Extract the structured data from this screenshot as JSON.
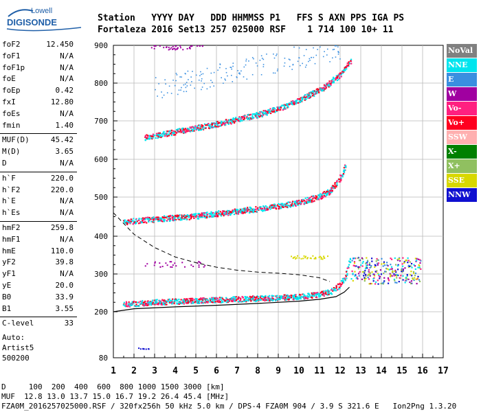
{
  "logo": {
    "line1": "Lowell",
    "line2": "DIGISONDE"
  },
  "header": {
    "labels": "Station   YYYY DAY   DDD HHMMSS P1   FFS S AXN PPS IGA PS",
    "values": "Fortaleza 2016 Set13 257 025000 RSF    1 714 100 10+ 11"
  },
  "params": [
    {
      "name": "foF2",
      "value": "12.450"
    },
    {
      "name": "foF1",
      "value": "N/A"
    },
    {
      "name": "foF1p",
      "value": "N/A"
    },
    {
      "name": "foE",
      "value": "N/A"
    },
    {
      "name": "foEp",
      "value": "0.42"
    },
    {
      "name": "fxI",
      "value": "12.80"
    },
    {
      "name": "foEs",
      "value": "N/A"
    },
    {
      "name": "fmin",
      "value": "1.40"
    },
    {
      "name": "MUF(D)",
      "value": "45.42"
    },
    {
      "name": "M(D)",
      "value": "3.65"
    },
    {
      "name": "D",
      "value": "N/A"
    },
    {
      "name": "h`F",
      "value": "220.0"
    },
    {
      "name": "h`F2",
      "value": "220.0"
    },
    {
      "name": "h`E",
      "value": "N/A"
    },
    {
      "name": "h`Es",
      "value": "N/A"
    },
    {
      "name": "hmF2",
      "value": "259.8"
    },
    {
      "name": "hmF1",
      "value": "N/A"
    },
    {
      "name": "hmE",
      "value": "110.0"
    },
    {
      "name": "yF2",
      "value": "39.8"
    },
    {
      "name": "yF1",
      "value": "N/A"
    },
    {
      "name": "yE",
      "value": "20.0"
    },
    {
      "name": "B0",
      "value": "33.9"
    },
    {
      "name": "B1",
      "value": "3.55"
    },
    {
      "name": "C-level",
      "value": "33"
    }
  ],
  "autoscaling": {
    "line1": "Auto:",
    "line2": "Artist5",
    "line3": "500200"
  },
  "legend": [
    {
      "label": "NoVal",
      "color": "#808080"
    },
    {
      "label": "NNE",
      "color": "#00e5ee"
    },
    {
      "label": "E",
      "color": "#3a8fe0"
    },
    {
      "label": "W",
      "color": "#a000a0"
    },
    {
      "label": "Vo-",
      "color": "#ff2080"
    },
    {
      "label": "Vo+",
      "color": "#ff0020"
    },
    {
      "label": "SSW",
      "color": "#ffb0b0"
    },
    {
      "label": "X-",
      "color": "#008000"
    },
    {
      "label": "X+",
      "color": "#90c060"
    },
    {
      "label": "SSE",
      "color": "#d8d800"
    },
    {
      "label": "NNW",
      "color": "#1010d0"
    }
  ],
  "footer": {
    "line1": "D     100  200  400  600  800 1000 1500 3000 [km]",
    "line2": "MUF  12.8 13.0 13.7 15.0 16.7 19.2 26.4 45.4 [MHz]",
    "line3": "FZA0M_2016257025000.RSF / 320fx256h 50 kHz 5.0 km / DPS-4 FZA0M 904 / 3.9 S 321.6 E   Ion2Png 1.3.20"
  },
  "chart_data": {
    "type": "scatter",
    "x_ticks": [
      "1",
      "2",
      "3",
      "4",
      "5",
      "6",
      "7",
      "8",
      "9",
      "10",
      "11",
      "12",
      "13",
      "14",
      "15",
      "16",
      "17"
    ],
    "y_ticks": [
      "80",
      "200",
      "300",
      "400",
      "500",
      "600",
      "700",
      "800",
      "900"
    ],
    "xlim": [
      1,
      17
    ],
    "ylim": [
      80,
      900
    ],
    "grid": true,
    "traces": [
      {
        "name": "O-trace F layer",
        "points": [
          [
            1.5,
            218
          ],
          [
            3,
            224
          ],
          [
            5,
            228
          ],
          [
            7,
            232
          ],
          [
            9,
            236
          ],
          [
            10,
            238
          ],
          [
            11,
            245
          ],
          [
            11.5,
            252
          ],
          [
            12,
            270
          ],
          [
            12.3,
            300
          ],
          [
            12.45,
            345
          ]
        ]
      },
      {
        "name": "second hop",
        "points": [
          [
            1.5,
            435
          ],
          [
            3,
            442
          ],
          [
            5,
            450
          ],
          [
            7,
            462
          ],
          [
            9,
            475
          ],
          [
            10,
            485
          ],
          [
            11,
            500
          ],
          [
            11.5,
            515
          ],
          [
            12,
            550
          ],
          [
            12.3,
            585
          ]
        ]
      },
      {
        "name": "third hop",
        "points": [
          [
            2.5,
            655
          ],
          [
            4,
            670
          ],
          [
            6,
            690
          ],
          [
            8,
            715
          ],
          [
            9.5,
            740
          ],
          [
            11,
            780
          ],
          [
            12,
            820
          ],
          [
            12.5,
            860
          ]
        ]
      },
      {
        "name": "profile",
        "points": [
          [
            1,
            200
          ],
          [
            2,
            208
          ],
          [
            4,
            213
          ],
          [
            6,
            217
          ],
          [
            8,
            222
          ],
          [
            10,
            228
          ],
          [
            11,
            233
          ],
          [
            11.8,
            240
          ],
          [
            12.2,
            252
          ],
          [
            12.45,
            265
          ]
        ]
      },
      {
        "name": "MUF curve",
        "points": [
          [
            1,
            460
          ],
          [
            2,
            405
          ],
          [
            3,
            370
          ],
          [
            4,
            345
          ],
          [
            5,
            330
          ],
          [
            6,
            318
          ],
          [
            7,
            310
          ],
          [
            8,
            305
          ],
          [
            9,
            302
          ],
          [
            10,
            298
          ],
          [
            11,
            290
          ],
          [
            11.5,
            280
          ]
        ]
      }
    ]
  }
}
